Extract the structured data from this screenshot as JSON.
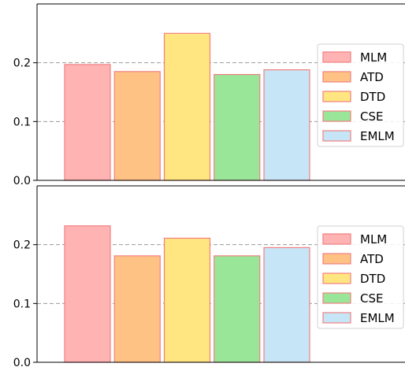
{
  "chart_data": [
    {
      "type": "bar",
      "categories": [
        "MLM",
        "ATD",
        "DTD",
        "CSE",
        "EMLM"
      ],
      "values": [
        0.197,
        0.185,
        0.25,
        0.18,
        0.188
      ],
      "ylim": [
        0,
        0.3
      ],
      "yticks": [
        "0.0",
        "0.1",
        "0.2"
      ],
      "ytick_values": [
        0,
        0.1,
        0.2
      ],
      "grid": "horizontal-dashed",
      "legend": {
        "placement": "right",
        "entries": [
          "MLM",
          "ATD",
          "DTD",
          "CSE",
          "EMLM"
        ]
      }
    },
    {
      "type": "bar",
      "categories": [
        "MLM",
        "ATD",
        "DTD",
        "CSE",
        "EMLM"
      ],
      "values": [
        0.232,
        0.181,
        0.211,
        0.181,
        0.195
      ],
      "ylim": [
        0,
        0.3
      ],
      "yticks": [
        "0.0",
        "0.1",
        "0.2"
      ],
      "ytick_values": [
        0,
        0.1,
        0.2
      ],
      "grid": "horizontal-dashed",
      "legend": {
        "placement": "right",
        "entries": [
          "MLM",
          "ATD",
          "DTD",
          "CSE",
          "EMLM"
        ]
      }
    }
  ],
  "colors": {
    "MLM": "#ffb3b3",
    "ATD": "#ffc285",
    "DTD": "#ffe680",
    "CSE": "#99e699",
    "EMLM": "#c6e6f7",
    "bar_edge": "#f08080",
    "grid": "#999999"
  }
}
